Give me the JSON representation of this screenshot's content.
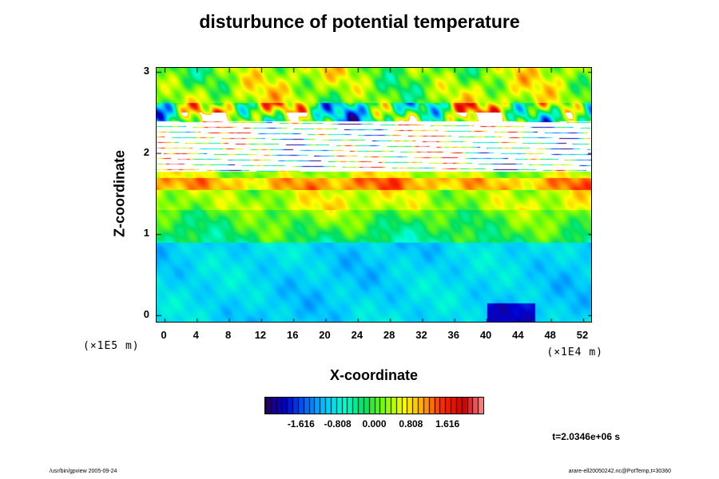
{
  "chart_data": {
    "type": "heatmap",
    "title": "disturbunce of potential temperature",
    "xlabel": "X-coordinate",
    "ylabel": "Z-coordinate",
    "x_unit": "(×1E4 m)",
    "y_unit": "(×1E5 m)",
    "xlim": [
      0,
      52
    ],
    "ylim": [
      0,
      3
    ],
    "x_ticks": [
      "0",
      "4",
      "8",
      "12",
      "16",
      "20",
      "24",
      "28",
      "32",
      "36",
      "40",
      "44",
      "48",
      "52"
    ],
    "y_ticks": [
      "0",
      "1",
      "2",
      "3"
    ],
    "colorbar": {
      "range": [
        -2.424,
        2.424
      ],
      "ticks": [
        "-1.616",
        "-0.808",
        "0.000",
        "0.808",
        "1.616"
      ],
      "colors": [
        "#2a0060",
        "#0000d0",
        "#0064ff",
        "#00c8ff",
        "#00ffd0",
        "#00e060",
        "#80ff00",
        "#ffff00",
        "#ffa000",
        "#ff2000",
        "#d00000",
        "#ff9090"
      ]
    },
    "time_label": "t=2.0346e+06 s",
    "bands": [
      {
        "z_range": [
          2.4,
          3.05
        ],
        "description": "disturbed upper layer",
        "mean_value": 0.4
      },
      {
        "z_range": [
          1.75,
          2.4
        ],
        "description": "out-of-range (white) layer"
      },
      {
        "z_range": [
          1.3,
          1.75
        ],
        "description": "warm anomaly layer",
        "mean_value": 0.6
      },
      {
        "z_range": [
          0.9,
          1.3
        ],
        "description": "transition layer",
        "mean_value": 0.0
      },
      {
        "z_range": [
          -0.1,
          0.9
        ],
        "description": "cold lower layer",
        "mean_value": -1.0
      }
    ]
  },
  "footer": {
    "left": "/usr/bin/gpview 2005-09-24",
    "right": "arare-ell20050242.nc@PotTemp,t=30360"
  }
}
